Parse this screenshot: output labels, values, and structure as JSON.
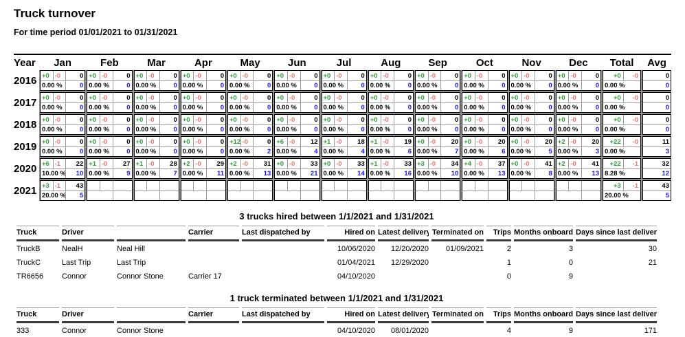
{
  "title": "Truck turnover",
  "subtitle": "For time period 01/01/2021 to 01/31/2021",
  "colors": {
    "added_green": "#2aa135",
    "removed_red": "#f4736b",
    "metric_blue": "#1414ff",
    "grid_line_gray": "#999999",
    "block_gap_gray": "#8f8f8f",
    "header_rule_dark": "#3a3a3a"
  },
  "turnover_table": {
    "columns": [
      "Year",
      "Jan",
      "Feb",
      "Mar",
      "Apr",
      "May",
      "Jun",
      "Jul",
      "Aug",
      "Sep",
      "Oct",
      "Nov",
      "Dec",
      "Total",
      "Avg"
    ],
    "rows": [
      {
        "year": "2016",
        "months": [
          {
            "plus": "+0",
            "minus": "-0",
            "count": "0",
            "pct": "0.00 %",
            "blue": "0"
          },
          {
            "plus": "+0",
            "minus": "-0",
            "count": "0",
            "pct": "0.00 %",
            "blue": "0"
          },
          {
            "plus": "+0",
            "minus": "-0",
            "count": "0",
            "pct": "0.00 %",
            "blue": "0"
          },
          {
            "plus": "+0",
            "minus": "-0",
            "count": "0",
            "pct": "0.00 %",
            "blue": "0"
          },
          {
            "plus": "+0",
            "minus": "-0",
            "count": "0",
            "pct": "0.00 %",
            "blue": "0"
          },
          {
            "plus": "+0",
            "minus": "-0",
            "count": "0",
            "pct": "0.00 %",
            "blue": "0"
          },
          {
            "plus": "+0",
            "minus": "-0",
            "count": "0",
            "pct": "0.00 %",
            "blue": "0"
          },
          {
            "plus": "+0",
            "minus": "-0",
            "count": "0",
            "pct": "0.00 %",
            "blue": "0"
          },
          {
            "plus": "+0",
            "minus": "-0",
            "count": "0",
            "pct": "0.00 %",
            "blue": "0"
          },
          {
            "plus": "+0",
            "minus": "-0",
            "count": "0",
            "pct": "0.00 %",
            "blue": "0"
          },
          {
            "plus": "+0",
            "minus": "-0",
            "count": "0",
            "pct": "0.00 %",
            "blue": "0"
          },
          {
            "plus": "+0",
            "minus": "-0",
            "count": "0",
            "pct": "0.00 %",
            "blue": "0"
          }
        ],
        "total": {
          "plus": "+0",
          "minus": "-0",
          "pct": "0.00 %"
        },
        "avg": {
          "count": "0",
          "blue": "0"
        }
      },
      {
        "year": "2017",
        "months": [
          {
            "plus": "+0",
            "minus": "-0",
            "count": "0",
            "pct": "0.00 %",
            "blue": "0"
          },
          {
            "plus": "+0",
            "minus": "-0",
            "count": "0",
            "pct": "0.00 %",
            "blue": "0"
          },
          {
            "plus": "+0",
            "minus": "-0",
            "count": "0",
            "pct": "0.00 %",
            "blue": "0"
          },
          {
            "plus": "+0",
            "minus": "-0",
            "count": "0",
            "pct": "0.00 %",
            "blue": "0"
          },
          {
            "plus": "+0",
            "minus": "-0",
            "count": "0",
            "pct": "0.00 %",
            "blue": "0"
          },
          {
            "plus": "+0",
            "minus": "-0",
            "count": "0",
            "pct": "0.00 %",
            "blue": "0"
          },
          {
            "plus": "+0",
            "minus": "-0",
            "count": "0",
            "pct": "0.00 %",
            "blue": "0"
          },
          {
            "plus": "+0",
            "minus": "-0",
            "count": "0",
            "pct": "0.00 %",
            "blue": "0"
          },
          {
            "plus": "+0",
            "minus": "-0",
            "count": "0",
            "pct": "0.00 %",
            "blue": "0"
          },
          {
            "plus": "+0",
            "minus": "-0",
            "count": "0",
            "pct": "0.00 %",
            "blue": "0"
          },
          {
            "plus": "+0",
            "minus": "-0",
            "count": "0",
            "pct": "0.00 %",
            "blue": "0"
          },
          {
            "plus": "+0",
            "minus": "-0",
            "count": "0",
            "pct": "0.00 %",
            "blue": "0"
          }
        ],
        "total": {
          "plus": "+0",
          "minus": "-0",
          "pct": "0.00 %"
        },
        "avg": {
          "count": "0",
          "blue": "0"
        }
      },
      {
        "year": "2018",
        "months": [
          {
            "plus": "+0",
            "minus": "-0",
            "count": "0",
            "pct": "0.00 %",
            "blue": "0"
          },
          {
            "plus": "+0",
            "minus": "-0",
            "count": "0",
            "pct": "0.00 %",
            "blue": "0"
          },
          {
            "plus": "+0",
            "minus": "-0",
            "count": "0",
            "pct": "0.00 %",
            "blue": "0"
          },
          {
            "plus": "+0",
            "minus": "-0",
            "count": "0",
            "pct": "0.00 %",
            "blue": "0"
          },
          {
            "plus": "+0",
            "minus": "-0",
            "count": "0",
            "pct": "0.00 %",
            "blue": "0"
          },
          {
            "plus": "+0",
            "minus": "-0",
            "count": "0",
            "pct": "0.00 %",
            "blue": "0"
          },
          {
            "plus": "+0",
            "minus": "-0",
            "count": "0",
            "pct": "0.00 %",
            "blue": "0"
          },
          {
            "plus": "+0",
            "minus": "-0",
            "count": "0",
            "pct": "0.00 %",
            "blue": "0"
          },
          {
            "plus": "+0",
            "minus": "-0",
            "count": "0",
            "pct": "0.00 %",
            "blue": "0"
          },
          {
            "plus": "+0",
            "minus": "-0",
            "count": "0",
            "pct": "0.00 %",
            "blue": "0"
          },
          {
            "plus": "+0",
            "minus": "-0",
            "count": "0",
            "pct": "0.00 %",
            "blue": "0"
          },
          {
            "plus": "+0",
            "minus": "-0",
            "count": "0",
            "pct": "0.00 %",
            "blue": "0"
          }
        ],
        "total": {
          "plus": "+0",
          "minus": "-0",
          "pct": "0.00 %"
        },
        "avg": {
          "count": "0",
          "blue": "0"
        }
      },
      {
        "year": "2019",
        "months": [
          {
            "plus": "+0",
            "minus": "-0",
            "count": "0",
            "pct": "0.00 %",
            "blue": "0"
          },
          {
            "plus": "+0",
            "minus": "-0",
            "count": "0",
            "pct": "0.00 %",
            "blue": "0"
          },
          {
            "plus": "+0",
            "minus": "-0",
            "count": "0",
            "pct": "0.00 %",
            "blue": "0"
          },
          {
            "plus": "+0",
            "minus": "-0",
            "count": "0",
            "pct": "0.00 %",
            "blue": "0"
          },
          {
            "plus": "+12",
            "minus": "-0",
            "count": "0",
            "pct": "0.00 %",
            "blue": "2"
          },
          {
            "plus": "+6",
            "minus": "-0",
            "count": "12",
            "pct": "0.00 %",
            "blue": "4"
          },
          {
            "plus": "+1",
            "minus": "-0",
            "count": "18",
            "pct": "0.00 %",
            "blue": "4"
          },
          {
            "plus": "+1",
            "minus": "-0",
            "count": "19",
            "pct": "0.00 %",
            "blue": "6"
          },
          {
            "plus": "+0",
            "minus": "-0",
            "count": "20",
            "pct": "0.00 %",
            "blue": "7"
          },
          {
            "plus": "+0",
            "minus": "-0",
            "count": "20",
            "pct": "0.00 %",
            "blue": "6"
          },
          {
            "plus": "+0",
            "minus": "-0",
            "count": "20",
            "pct": "0.00 %",
            "blue": "5"
          },
          {
            "plus": "+2",
            "minus": "-0",
            "count": "20",
            "pct": "0.00 %",
            "blue": "3"
          }
        ],
        "total": {
          "plus": "+22",
          "minus": "-0",
          "pct": "0.00 %"
        },
        "avg": {
          "count": "11",
          "blue": "3"
        }
      },
      {
        "year": "2020",
        "months": [
          {
            "plus": "+6",
            "minus": "-1",
            "count": "22",
            "pct": "10.00 %",
            "blue": "10"
          },
          {
            "plus": "+1",
            "minus": "-0",
            "count": "27",
            "pct": "0.00 %",
            "blue": "9"
          },
          {
            "plus": "+1",
            "minus": "-0",
            "count": "28",
            "pct": "0.00 %",
            "blue": "7"
          },
          {
            "plus": "+2",
            "minus": "-0",
            "count": "29",
            "pct": "0.00 %",
            "blue": "11"
          },
          {
            "plus": "+2",
            "minus": "-0",
            "count": "31",
            "pct": "0.00 %",
            "blue": "13"
          },
          {
            "plus": "+0",
            "minus": "-0",
            "count": "33",
            "pct": "0.00 %",
            "blue": "21"
          },
          {
            "plus": "+0",
            "minus": "-0",
            "count": "33",
            "pct": "0.00 %",
            "blue": "14"
          },
          {
            "plus": "+1",
            "minus": "-0",
            "count": "33",
            "pct": "0.00 %",
            "blue": "16"
          },
          {
            "plus": "+3",
            "minus": "-0",
            "count": "34",
            "pct": "0.00 %",
            "blue": "10"
          },
          {
            "plus": "+4",
            "minus": "-0",
            "count": "37",
            "pct": "0.00 %",
            "blue": "13"
          },
          {
            "plus": "+0",
            "minus": "-0",
            "count": "41",
            "pct": "0.00 %",
            "blue": "8"
          },
          {
            "plus": "+2",
            "minus": "-0",
            "count": "41",
            "pct": "0.00 %",
            "blue": "13"
          }
        ],
        "total": {
          "plus": "+22",
          "minus": "-1",
          "pct": "8.28 %"
        },
        "avg": {
          "count": "32",
          "blue": "12"
        }
      },
      {
        "year": "2021",
        "months": [
          {
            "plus": "+3",
            "minus": "-1",
            "count": "43",
            "pct": "20.00 %",
            "blue": "5"
          },
          {
            "plus": "",
            "minus": "",
            "count": "",
            "pct": "",
            "blue": ""
          },
          {
            "plus": "",
            "minus": "",
            "count": "",
            "pct": "",
            "blue": ""
          },
          {
            "plus": "",
            "minus": "",
            "count": "",
            "pct": "",
            "blue": ""
          },
          {
            "plus": "",
            "minus": "",
            "count": "",
            "pct": "",
            "blue": ""
          },
          {
            "plus": "",
            "minus": "",
            "count": "",
            "pct": "",
            "blue": ""
          },
          {
            "plus": "",
            "minus": "",
            "count": "",
            "pct": "",
            "blue": ""
          },
          {
            "plus": "",
            "minus": "",
            "count": "",
            "pct": "",
            "blue": ""
          },
          {
            "plus": "",
            "minus": "",
            "count": "",
            "pct": "",
            "blue": ""
          },
          {
            "plus": "",
            "minus": "",
            "count": "",
            "pct": "",
            "blue": ""
          },
          {
            "plus": "",
            "minus": "",
            "count": "",
            "pct": "",
            "blue": ""
          },
          {
            "plus": "",
            "minus": "",
            "count": "",
            "pct": "",
            "blue": ""
          }
        ],
        "total": {
          "plus": "+3",
          "minus": "-1",
          "pct": "20.00 %"
        },
        "avg": {
          "count": "43",
          "blue": "5"
        }
      }
    ]
  },
  "hired_section": {
    "title": "3 trucks hired between 1/1/2021 and 1/31/2021",
    "columns": [
      "Truck",
      "Driver",
      "",
      "Carrier",
      "Last dispatched by",
      "Hired on",
      "Latest delivery",
      "Terminated on",
      "Trips",
      "Months onboard",
      "Days since last delivery"
    ],
    "rows": [
      [
        "TruckB",
        "NealH",
        "Neal Hill",
        "",
        "",
        "10/06/2020",
        "12/20/2020",
        "01/09/2021",
        "2",
        "3",
        "30"
      ],
      [
        "TruckC",
        "Last Trip",
        "Last Trip",
        "",
        "",
        "01/04/2021",
        "12/29/2020",
        "",
        "1",
        "0",
        "21"
      ],
      [
        "TR6656",
        "Connor",
        "Connor Stone",
        "Carrier 17",
        "",
        "04/10/2020",
        "",
        "",
        "0",
        "9",
        ""
      ]
    ]
  },
  "terminated_section": {
    "title": "1 truck terminated between 1/1/2021 and 1/31/2021",
    "columns": [
      "Truck",
      "Driver",
      "",
      "Carrier",
      "Last dispatched by",
      "Hired on",
      "Latest delivery",
      "Terminated on",
      "Trips",
      "Months onboard",
      "Days since last delivery"
    ],
    "rows": [
      [
        "333",
        "Connor",
        "Connor Stone",
        "",
        "",
        "04/10/2020",
        "08/01/2020",
        "",
        "4",
        "9",
        "171"
      ]
    ]
  }
}
